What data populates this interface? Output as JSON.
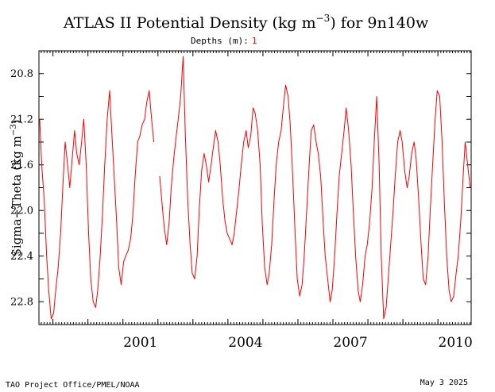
{
  "chart_data": {
    "type": "line",
    "title": "ATLAS II Potential Density (kg m",
    "title_sup": "−3",
    "title_tail": ") for 9n140w",
    "depths_label": "Depths (m):",
    "depth_value": "1",
    "ylabel": "Sigma−Theta (kg m",
    "ylabel_sup": "−3",
    "ylabel_tail": ")",
    "y_inverted": true,
    "ylim": [
      20.6,
      23.0
    ],
    "yticks": [
      "20.8",
      "21.2",
      "21.6",
      "22.0",
      "22.4",
      "22.8"
    ],
    "xlim": [
      1998.6,
      2010.95
    ],
    "xticks": [
      "2001",
      "2004",
      "2007",
      "2010"
    ],
    "series": [
      {
        "color": "#ff0000",
        "segments": [
          [
            [
              1998.62,
              21.2
            ],
            [
              1998.68,
              21.6
            ],
            [
              1998.75,
              21.9
            ],
            [
              1998.82,
              22.4
            ],
            [
              1998.88,
              22.7
            ],
            [
              1998.95,
              22.95
            ],
            [
              1999.02,
              22.9
            ],
            [
              1999.08,
              22.7
            ],
            [
              1999.15,
              22.5
            ],
            [
              1999.22,
              22.2
            ],
            [
              1999.28,
              21.8
            ],
            [
              1999.35,
              21.4
            ],
            [
              1999.42,
              21.6
            ],
            [
              1999.48,
              21.8
            ],
            [
              1999.55,
              21.55
            ],
            [
              1999.62,
              21.3
            ],
            [
              1999.68,
              21.5
            ],
            [
              1999.75,
              21.6
            ],
            [
              1999.82,
              21.4
            ],
            [
              1999.88,
              21.2
            ],
            [
              1999.95,
              21.6
            ],
            [
              2000.02,
              22.2
            ],
            [
              2000.08,
              22.6
            ],
            [
              2000.15,
              22.8
            ],
            [
              2000.22,
              22.85
            ],
            [
              2000.28,
              22.7
            ],
            [
              2000.35,
              22.4
            ],
            [
              2000.42,
              22.0
            ],
            [
              2000.48,
              21.6
            ],
            [
              2000.55,
              21.2
            ],
            [
              2000.62,
              20.95
            ],
            [
              2000.68,
              21.3
            ],
            [
              2000.75,
              21.7
            ],
            [
              2000.82,
              22.1
            ],
            [
              2000.88,
              22.5
            ],
            [
              2000.95,
              22.65
            ],
            [
              2001.02,
              22.45
            ],
            [
              2001.08,
              22.4
            ],
            [
              2001.15,
              22.35
            ],
            [
              2001.22,
              22.25
            ],
            [
              2001.28,
              22.05
            ],
            [
              2001.35,
              21.7
            ],
            [
              2001.42,
              21.4
            ],
            [
              2001.48,
              21.35
            ],
            [
              2001.55,
              21.25
            ],
            [
              2001.62,
              21.2
            ],
            [
              2001.68,
              21.05
            ],
            [
              2001.75,
              20.95
            ],
            [
              2001.82,
              21.2
            ],
            [
              2001.88,
              21.4
            ]
          ],
          [
            [
              2002.05,
              21.7
            ],
            [
              2002.12,
              21.95
            ],
            [
              2002.18,
              22.15
            ],
            [
              2002.25,
              22.3
            ],
            [
              2002.32,
              22.1
            ],
            [
              2002.38,
              21.8
            ],
            [
              2002.45,
              21.55
            ],
            [
              2002.52,
              21.35
            ],
            [
              2002.58,
              21.2
            ],
            [
              2002.65,
              21.0
            ],
            [
              2002.72,
              20.65
            ],
            [
              2002.78,
              21.3
            ],
            [
              2002.85,
              21.9
            ],
            [
              2002.92,
              22.3
            ],
            [
              2002.98,
              22.55
            ],
            [
              2003.05,
              22.6
            ],
            [
              2003.12,
              22.4
            ],
            [
              2003.18,
              22.0
            ],
            [
              2003.25,
              21.65
            ],
            [
              2003.32,
              21.5
            ],
            [
              2003.38,
              21.6
            ],
            [
              2003.45,
              21.75
            ],
            [
              2003.52,
              21.6
            ],
            [
              2003.58,
              21.45
            ],
            [
              2003.65,
              21.3
            ],
            [
              2003.72,
              21.4
            ],
            [
              2003.78,
              21.6
            ],
            [
              2003.85,
              21.9
            ],
            [
              2003.92,
              22.1
            ],
            [
              2003.98,
              22.2
            ],
            [
              2004.05,
              22.25
            ],
            [
              2004.12,
              22.3
            ],
            [
              2004.18,
              22.2
            ],
            [
              2004.25,
              22.0
            ],
            [
              2004.32,
              21.8
            ],
            [
              2004.38,
              21.6
            ],
            [
              2004.45,
              21.4
            ],
            [
              2004.52,
              21.3
            ],
            [
              2004.58,
              21.45
            ],
            [
              2004.65,
              21.35
            ],
            [
              2004.72,
              21.1
            ],
            [
              2004.78,
              21.15
            ],
            [
              2004.85,
              21.3
            ],
            [
              2004.92,
              21.6
            ],
            [
              2004.98,
              22.1
            ],
            [
              2005.05,
              22.5
            ],
            [
              2005.12,
              22.65
            ],
            [
              2005.18,
              22.55
            ],
            [
              2005.25,
              22.3
            ],
            [
              2005.32,
              21.9
            ],
            [
              2005.38,
              21.6
            ],
            [
              2005.45,
              21.4
            ],
            [
              2005.52,
              21.3
            ],
            [
              2005.58,
              21.1
            ],
            [
              2005.65,
              20.9
            ],
            [
              2005.72,
              21.0
            ],
            [
              2005.78,
              21.25
            ],
            [
              2005.85,
              21.7
            ],
            [
              2005.92,
              22.2
            ],
            [
              2005.98,
              22.6
            ],
            [
              2006.05,
              22.75
            ],
            [
              2006.12,
              22.65
            ],
            [
              2006.18,
              22.4
            ],
            [
              2006.25,
              22.0
            ],
            [
              2006.32,
              21.6
            ],
            [
              2006.38,
              21.3
            ],
            [
              2006.45,
              21.25
            ],
            [
              2006.52,
              21.4
            ],
            [
              2006.58,
              21.5
            ],
            [
              2006.65,
              21.7
            ],
            [
              2006.72,
              22.1
            ],
            [
              2006.78,
              22.4
            ],
            [
              2006.85,
              22.6
            ],
            [
              2006.92,
              22.8
            ],
            [
              2006.98,
              22.7
            ],
            [
              2007.05,
              22.4
            ],
            [
              2007.12,
              22.0
            ],
            [
              2007.18,
              21.7
            ],
            [
              2007.25,
              21.5
            ],
            [
              2007.32,
              21.3
            ],
            [
              2007.38,
              21.1
            ],
            [
              2007.45,
              21.3
            ],
            [
              2007.52,
              21.6
            ],
            [
              2007.58,
              22.0
            ],
            [
              2007.65,
              22.4
            ],
            [
              2007.72,
              22.7
            ],
            [
              2007.78,
              22.8
            ],
            [
              2007.85,
              22.65
            ],
            [
              2007.92,
              22.4
            ],
            [
              2007.98,
              22.3
            ],
            [
              2008.05,
              22.1
            ],
            [
              2008.12,
              21.8
            ],
            [
              2008.18,
              21.4
            ],
            [
              2008.25,
              21.0
            ],
            [
              2008.32,
              21.6
            ],
            [
              2008.38,
              22.4
            ],
            [
              2008.45,
              22.95
            ],
            [
              2008.52,
              22.85
            ],
            [
              2008.58,
              22.6
            ],
            [
              2008.65,
              22.3
            ],
            [
              2008.72,
              22.0
            ],
            [
              2008.78,
              21.7
            ],
            [
              2008.85,
              21.4
            ],
            [
              2008.92,
              21.3
            ],
            [
              2008.98,
              21.4
            ],
            [
              2009.05,
              21.65
            ],
            [
              2009.12,
              21.8
            ],
            [
              2009.18,
              21.7
            ],
            [
              2009.25,
              21.5
            ],
            [
              2009.32,
              21.4
            ],
            [
              2009.38,
              21.55
            ],
            [
              2009.45,
              21.9
            ],
            [
              2009.52,
              22.3
            ],
            [
              2009.58,
              22.6
            ],
            [
              2009.65,
              22.65
            ],
            [
              2009.72,
              22.4
            ],
            [
              2009.78,
              22.0
            ],
            [
              2009.85,
              21.6
            ],
            [
              2009.92,
              21.2
            ],
            [
              2009.98,
              20.95
            ],
            [
              2010.05,
              21.0
            ],
            [
              2010.12,
              21.4
            ],
            [
              2010.18,
              21.9
            ],
            [
              2010.25,
              22.4
            ],
            [
              2010.32,
              22.7
            ],
            [
              2010.38,
              22.8
            ],
            [
              2010.45,
              22.75
            ],
            [
              2010.52,
              22.55
            ],
            [
              2010.58,
              22.4
            ],
            [
              2010.65,
              22.1
            ],
            [
              2010.72,
              21.7
            ],
            [
              2010.78,
              21.4
            ],
            [
              2010.85,
              21.6
            ],
            [
              2010.92,
              21.8
            ]
          ]
        ]
      }
    ]
  },
  "footer": {
    "left": "TAO Project Office/PMEL/NOAA",
    "right": "May  3 2025"
  }
}
